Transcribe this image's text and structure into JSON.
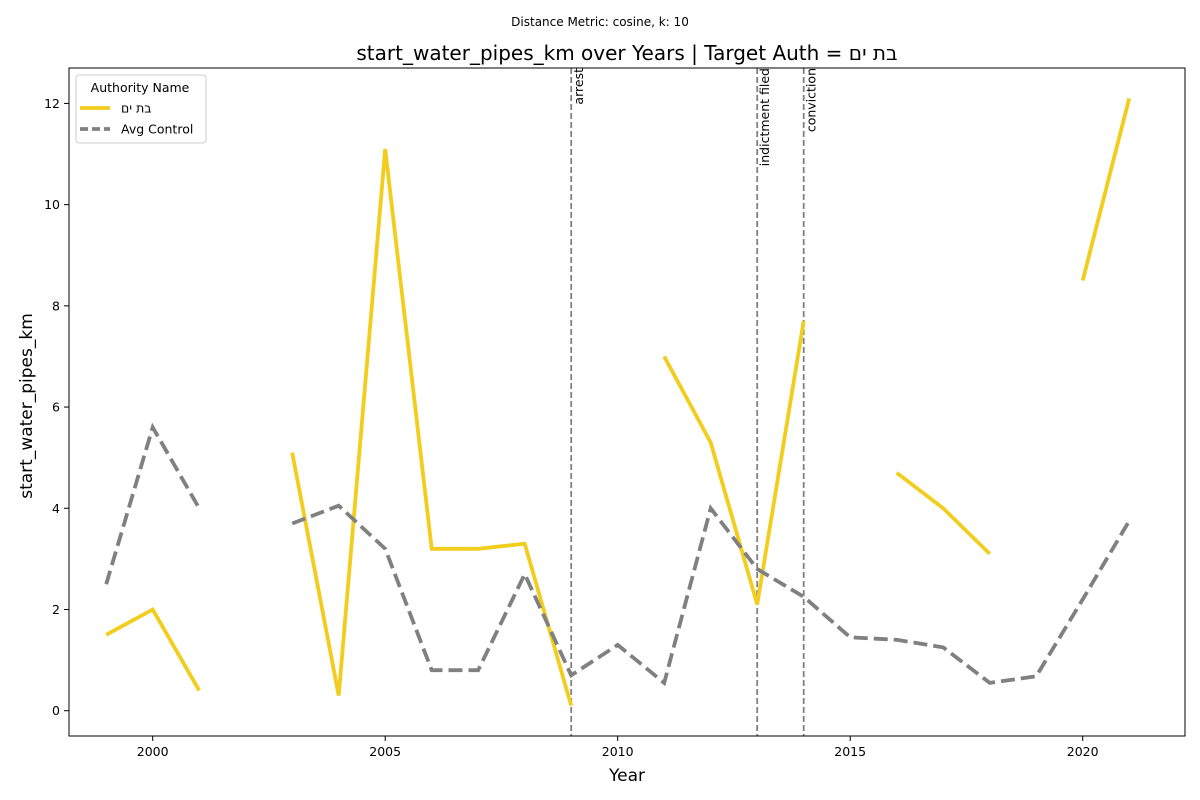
{
  "chart_data": {
    "type": "line",
    "suptitle": "Distance Metric: cosine, k: 10",
    "title": "start_water_pipes_km over Years | Target Auth = בת ים",
    "xlabel": "Year",
    "ylabel": "start_water_pipes_km",
    "xlim": [
      1998.2,
      2022.2
    ],
    "ylim": [
      -0.5,
      12.7
    ],
    "xticks": [
      2000,
      2005,
      2010,
      2015,
      2020
    ],
    "yticks": [
      0,
      2,
      4,
      6,
      8,
      10,
      12
    ],
    "grid": false,
    "legend": {
      "title": "Authority Name",
      "placement": "top-left"
    },
    "series": [
      {
        "name": "בת ים",
        "color": "#f2cd1d",
        "style": "solid",
        "x": [
          1999,
          2000,
          2001,
          2002,
          2003,
          2004,
          2005,
          2006,
          2007,
          2008,
          2009,
          2010,
          2011,
          2012,
          2013,
          2014,
          2015,
          2016,
          2017,
          2018,
          2019,
          2020,
          2021
        ],
        "values": [
          1.5,
          2.0,
          0.4,
          null,
          5.1,
          0.3,
          11.1,
          3.2,
          3.2,
          3.3,
          0.1,
          null,
          7.0,
          5.3,
          2.1,
          7.7,
          null,
          4.7,
          4.0,
          3.1,
          null,
          8.5,
          12.1
        ]
      },
      {
        "name": "Avg Control",
        "color": "#808080",
        "style": "dashed",
        "x": [
          1999,
          2000,
          2001,
          2002,
          2003,
          2004,
          2005,
          2006,
          2007,
          2008,
          2009,
          2010,
          2011,
          2012,
          2013,
          2014,
          2015,
          2016,
          2017,
          2018,
          2019,
          2020,
          2021
        ],
        "values": [
          2.5,
          5.6,
          4.0,
          null,
          3.7,
          4.05,
          3.2,
          0.8,
          0.8,
          2.7,
          0.7,
          1.3,
          0.55,
          4.0,
          2.8,
          2.25,
          1.45,
          1.4,
          1.25,
          0.55,
          0.68,
          2.2,
          3.75
        ]
      }
    ],
    "annotations": [
      {
        "x": 2009,
        "label": "arrest"
      },
      {
        "x": 2013,
        "label": "indictment filed"
      },
      {
        "x": 2014,
        "label": "conviction"
      }
    ]
  }
}
